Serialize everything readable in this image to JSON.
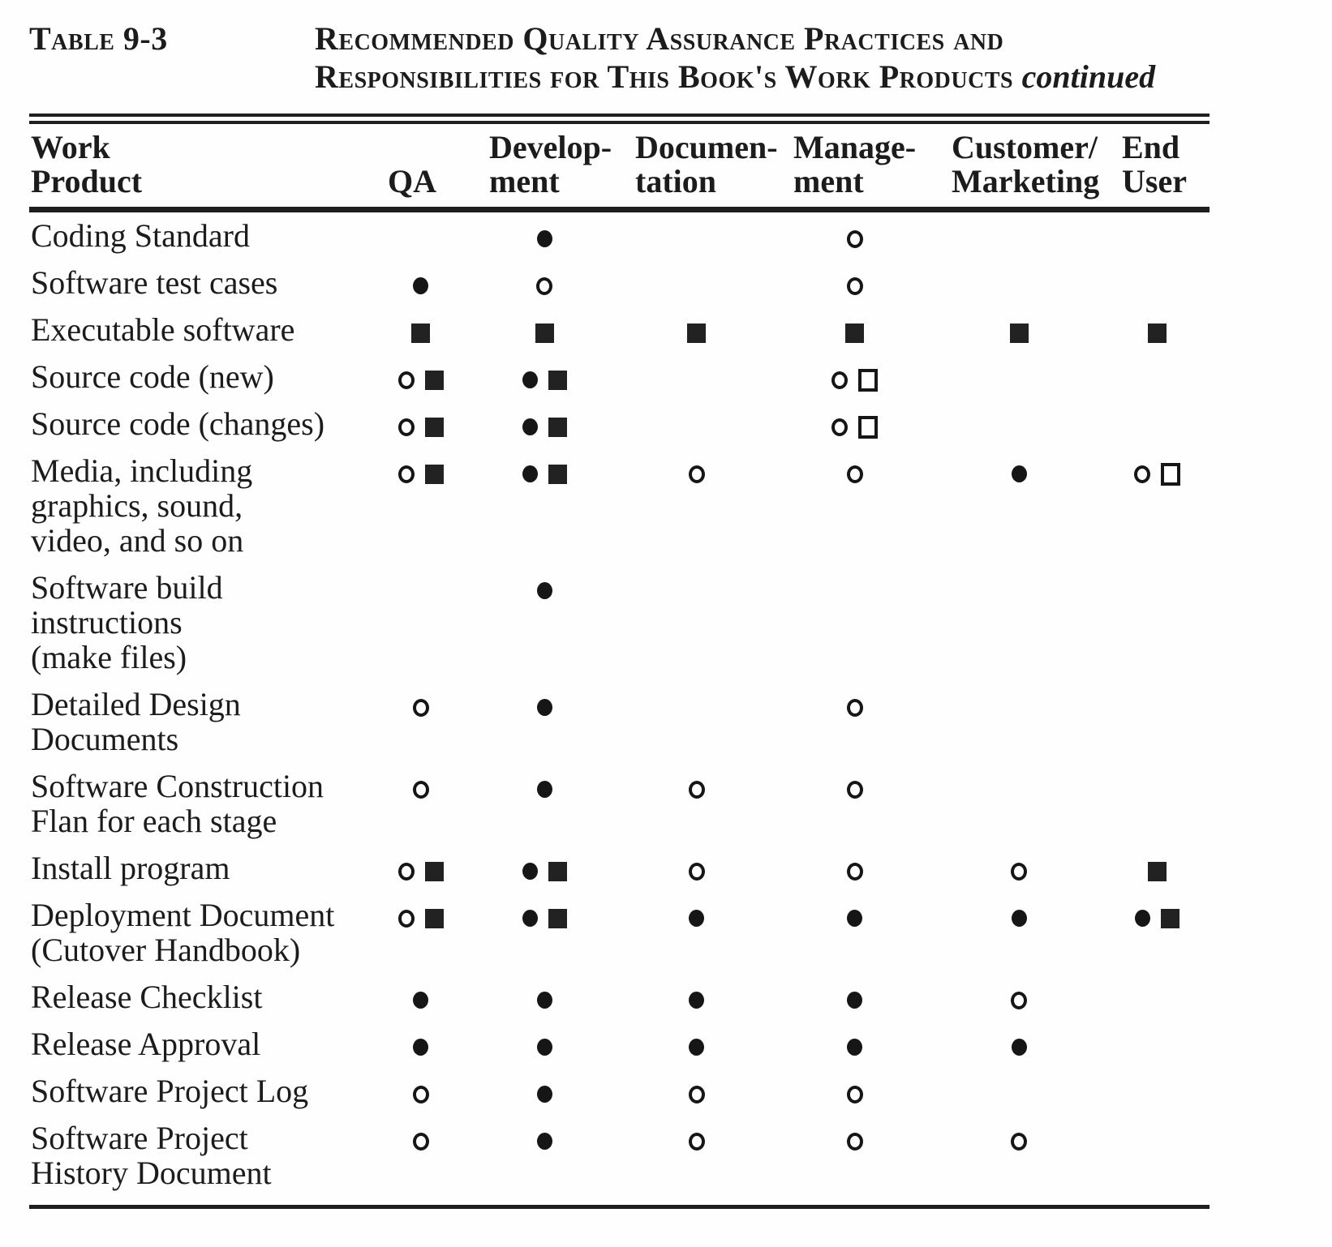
{
  "document": {
    "table_label": "Table 9-3",
    "title_line1": "Recommended Quality Assurance Practices and",
    "title_line2": "Responsibilities for This Book's Work Products",
    "title_continued": "continued"
  },
  "symbols": {
    "filled-circle": "●",
    "open-circle": "○",
    "filled-square": "■",
    "open-square": "□"
  },
  "table": {
    "columns": [
      {
        "id": "work_product",
        "label": "Work\nProduct"
      },
      {
        "id": "qa",
        "label": "QA"
      },
      {
        "id": "development",
        "label": "Develop-\nment"
      },
      {
        "id": "documentation",
        "label": "Documen-\ntation"
      },
      {
        "id": "management",
        "label": "Manage-\nment"
      },
      {
        "id": "customer_marketing",
        "label": "Customer/\nMarketing"
      },
      {
        "id": "end_user",
        "label": "End\nUser"
      }
    ],
    "rows": [
      {
        "work_product": "Coding Standard",
        "cells": {
          "qa": [],
          "development": [
            "filled-circle"
          ],
          "documentation": [],
          "management": [
            "open-circle"
          ],
          "customer_marketing": [],
          "end_user": []
        }
      },
      {
        "work_product": "Software test cases",
        "cells": {
          "qa": [
            "filled-circle"
          ],
          "development": [
            "open-circle"
          ],
          "documentation": [],
          "management": [
            "open-circle"
          ],
          "customer_marketing": [],
          "end_user": []
        }
      },
      {
        "work_product": "Executable software",
        "cells": {
          "qa": [
            "filled-square"
          ],
          "development": [
            "filled-square"
          ],
          "documentation": [
            "filled-square"
          ],
          "management": [
            "filled-square"
          ],
          "customer_marketing": [
            "filled-square"
          ],
          "end_user": [
            "filled-square"
          ]
        }
      },
      {
        "work_product": "Source code (new)",
        "cells": {
          "qa": [
            "open-circle",
            "filled-square"
          ],
          "development": [
            "filled-circle",
            "filled-square"
          ],
          "documentation": [],
          "management": [
            "open-circle",
            "open-square"
          ],
          "customer_marketing": [],
          "end_user": []
        }
      },
      {
        "work_product": "Source code (changes)",
        "cells": {
          "qa": [
            "open-circle",
            "filled-square"
          ],
          "development": [
            "filled-circle",
            "filled-square"
          ],
          "documentation": [],
          "management": [
            "open-circle",
            "open-square"
          ],
          "customer_marketing": [],
          "end_user": []
        }
      },
      {
        "work_product": "Media, including\ngraphics, sound,\nvideo, and so on",
        "cells": {
          "qa": [
            "open-circle",
            "filled-square"
          ],
          "development": [
            "filled-circle",
            "filled-square"
          ],
          "documentation": [
            "open-circle"
          ],
          "management": [
            "open-circle"
          ],
          "customer_marketing": [
            "filled-circle"
          ],
          "end_user": [
            "open-circle",
            "open-square"
          ]
        }
      },
      {
        "work_product": "Software build\ninstructions\n(make files)",
        "cells": {
          "qa": [],
          "development": [
            "filled-circle"
          ],
          "documentation": [],
          "management": [],
          "customer_marketing": [],
          "end_user": []
        }
      },
      {
        "work_product": "Detailed Design\nDocuments",
        "cells": {
          "qa": [
            "open-circle"
          ],
          "development": [
            "filled-circle"
          ],
          "documentation": [],
          "management": [
            "open-circle"
          ],
          "customer_marketing": [],
          "end_user": []
        }
      },
      {
        "work_product": "Software Construction\nFlan for each stage",
        "cells": {
          "qa": [
            "open-circle"
          ],
          "development": [
            "filled-circle"
          ],
          "documentation": [
            "open-circle"
          ],
          "management": [
            "open-circle"
          ],
          "customer_marketing": [],
          "end_user": []
        }
      },
      {
        "work_product": "Install program",
        "cells": {
          "qa": [
            "open-circle",
            "filled-square"
          ],
          "development": [
            "filled-circle",
            "filled-square"
          ],
          "documentation": [
            "open-circle"
          ],
          "management": [
            "open-circle"
          ],
          "customer_marketing": [
            "open-circle"
          ],
          "end_user": [
            "filled-square"
          ]
        }
      },
      {
        "work_product": "Deployment Document\n(Cutover Handbook)",
        "cells": {
          "qa": [
            "open-circle",
            "filled-square"
          ],
          "development": [
            "filled-circle",
            "filled-square"
          ],
          "documentation": [
            "filled-circle"
          ],
          "management": [
            "filled-circle"
          ],
          "customer_marketing": [
            "filled-circle"
          ],
          "end_user": [
            "filled-circle",
            "filled-square"
          ]
        }
      },
      {
        "work_product": "Release Checklist",
        "cells": {
          "qa": [
            "filled-circle"
          ],
          "development": [
            "filled-circle"
          ],
          "documentation": [
            "filled-circle"
          ],
          "management": [
            "filled-circle"
          ],
          "customer_marketing": [
            "open-circle"
          ],
          "end_user": []
        }
      },
      {
        "work_product": "Release Approval",
        "cells": {
          "qa": [
            "filled-circle"
          ],
          "development": [
            "filled-circle"
          ],
          "documentation": [
            "filled-circle"
          ],
          "management": [
            "filled-circle"
          ],
          "customer_marketing": [
            "filled-circle"
          ],
          "end_user": []
        }
      },
      {
        "work_product": "Software Project Log",
        "cells": {
          "qa": [
            "open-circle"
          ],
          "development": [
            "filled-circle"
          ],
          "documentation": [
            "open-circle"
          ],
          "management": [
            "open-circle"
          ],
          "customer_marketing": [],
          "end_user": []
        }
      },
      {
        "work_product": "Software Project\nHistory Document",
        "cells": {
          "qa": [
            "open-circle"
          ],
          "development": [
            "filled-circle"
          ],
          "documentation": [
            "open-circle"
          ],
          "management": [
            "open-circle"
          ],
          "customer_marketing": [
            "open-circle"
          ],
          "end_user": []
        }
      }
    ]
  }
}
